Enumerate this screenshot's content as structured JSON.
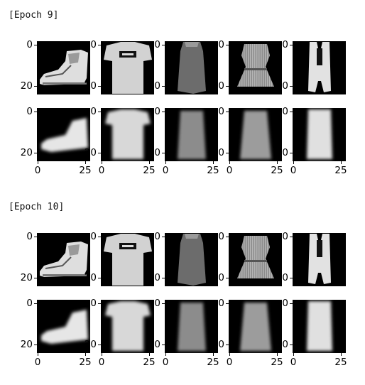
{
  "epochs": [
    {
      "label": "[Epoch 9]"
    },
    {
      "label": "[Epoch 10]"
    }
  ],
  "axis": {
    "y_ticks": [
      "0",
      "20"
    ],
    "x_ticks": [
      "0",
      "25"
    ]
  },
  "columns": [
    {
      "item": "ankle-boot"
    },
    {
      "item": "t-shirt"
    },
    {
      "item": "dress-dark"
    },
    {
      "item": "dress-patterned"
    },
    {
      "item": "top-sleeveless"
    }
  ],
  "rows": [
    {
      "kind": "original"
    },
    {
      "kind": "reconstruction"
    }
  ]
}
